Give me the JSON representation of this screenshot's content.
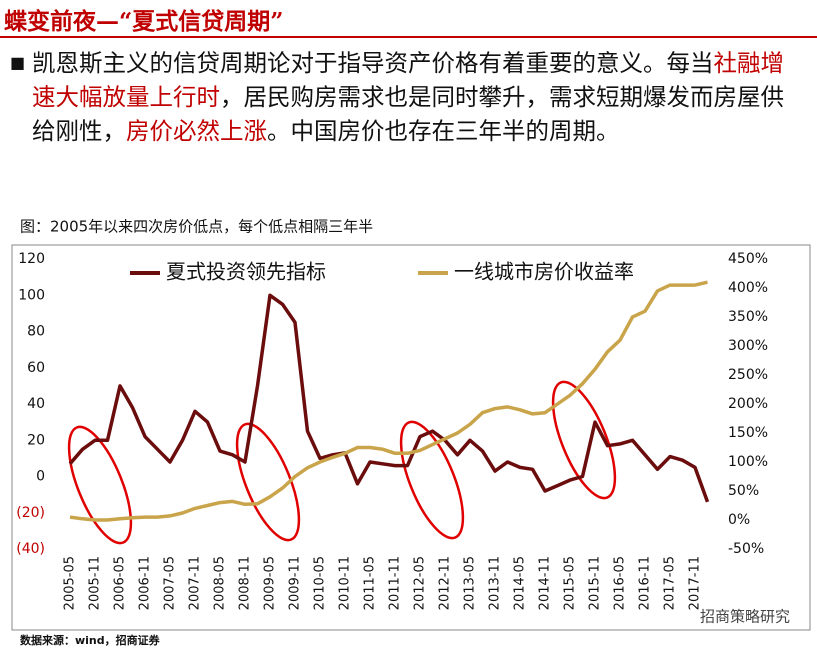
{
  "header": {
    "title": "蝶变前夜—“夏式信贷周期”",
    "paragraph": [
      {
        "text": "凯恩斯主义的信贷周期论对于指导资产价格有着重要的意义。每当",
        "highlight": false
      },
      {
        "text": "社融增速大幅放量上行时",
        "highlight": true
      },
      {
        "text": "，居民购房需求也是同时攀升，需求短期爆发而房屋供给刚性，",
        "highlight": false
      },
      {
        "text": "房价必然上涨",
        "highlight": true
      },
      {
        "text": "。中国房价也存在三年半的周期。",
        "highlight": false
      }
    ]
  },
  "chart_data": {
    "type": "line",
    "title": "图：2005年以来四次房价低点，每个低点相隔三年半",
    "categories": [
      "2005-05",
      null,
      "2005-11",
      null,
      "2006-05",
      null,
      "2006-11",
      null,
      "2007-05",
      null,
      "2007-11",
      null,
      "2008-05",
      null,
      "2008-11",
      null,
      "2009-05",
      null,
      "2009-11",
      null,
      "2010-05",
      null,
      "2010-11",
      null,
      "2011-05",
      null,
      "2011-11",
      null,
      "2012-05",
      null,
      "2012-11",
      null,
      "2013-05",
      null,
      "2013-11",
      null,
      "2014-05",
      null,
      "2014-11",
      null,
      "2015-05",
      null,
      "2015-11",
      null,
      "2016-05",
      null,
      "2016-11",
      null,
      "2017-05",
      null,
      "2017-11",
      null
    ],
    "series": [
      {
        "name": "夏式投资领先指标",
        "color": "#6b0d0d",
        "axis": "y",
        "values": [
          7,
          15,
          20,
          20,
          50,
          38,
          22,
          15,
          8,
          20,
          36,
          30,
          14,
          12,
          8,
          50,
          100,
          95,
          85,
          25,
          10,
          12,
          13,
          -4,
          8,
          7,
          6,
          6,
          22,
          25,
          20,
          12,
          20,
          14,
          3,
          8,
          5,
          4,
          -8,
          -5,
          -2,
          0,
          30,
          17,
          18,
          20,
          12,
          4,
          11,
          9,
          5,
          -14
        ]
      },
      {
        "name": "一线城市房价收益率",
        "color": "#c9a44a",
        "axis": "y2",
        "values": [
          5,
          2,
          0,
          0,
          2,
          4,
          5,
          5,
          7,
          12,
          20,
          25,
          30,
          32,
          27,
          28,
          40,
          55,
          75,
          90,
          100,
          108,
          115,
          125,
          125,
          122,
          115,
          115,
          120,
          130,
          140,
          150,
          165,
          185,
          192,
          195,
          190,
          183,
          185,
          200,
          215,
          235,
          260,
          290,
          310,
          350,
          360,
          395,
          405,
          405,
          405,
          410
        ]
      }
    ],
    "ylim": [
      -40,
      120
    ],
    "yticks": [
      {
        "value": -40,
        "label": "(40)"
      },
      {
        "value": -20,
        "label": "(20)"
      },
      0,
      20,
      40,
      60,
      80,
      100,
      120
    ],
    "negative_tick_color": "#c00000",
    "y2lim": [
      -50,
      450
    ],
    "y2ticks": [
      {
        "value": -50,
        "label": "-50%"
      },
      {
        "value": 0,
        "label": "0%"
      },
      {
        "value": 50,
        "label": "50%"
      },
      {
        "value": 100,
        "label": "100%"
      },
      {
        "value": 150,
        "label": "150%"
      },
      {
        "value": 200,
        "label": "200%"
      },
      {
        "value": 250,
        "label": "250%"
      },
      {
        "value": 300,
        "label": "300%"
      },
      {
        "value": 350,
        "label": "350%"
      },
      {
        "value": 400,
        "label": "400%"
      },
      {
        "value": 450,
        "label": "450%"
      }
    ],
    "grid": false,
    "legend": "top",
    "source": "数据来源：wind，招商证券",
    "watermark": "招商策略研究"
  }
}
